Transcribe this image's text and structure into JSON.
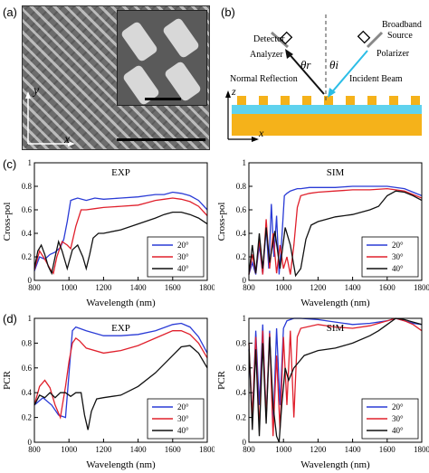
{
  "panels": {
    "a": {
      "label": "(a)",
      "axis_y": "y",
      "axis_x": "x"
    },
    "b": {
      "label": "(b)",
      "detector_line1": "Detector",
      "detector_line2": "Analyzer",
      "source_line1": "Broadband",
      "source_line2": "Source",
      "polarizer": "Polarizer",
      "normal_reflection": "Normal Reflection",
      "incident_beam": "Incident Beam",
      "theta_r": "θr",
      "theta_i": "θi",
      "axis_z": "z",
      "axis_x": "x"
    },
    "c": {
      "label": "(c)"
    },
    "d": {
      "label": "(d)"
    }
  },
  "colors": {
    "s20": "#2a3bd6",
    "s30": "#e0202c",
    "s40": "#111111",
    "substrate": "#f5b21a",
    "spacer": "#5fd2ee",
    "pillar": "#f5b21a",
    "incident": "#2bbde6"
  },
  "chart_data": [
    {
      "id": "c-exp",
      "type": "line",
      "title": "EXP",
      "xlabel": "Wavelength (nm)",
      "ylabel": "Cross-pol",
      "xlim": [
        800,
        1800
      ],
      "ylim": [
        0,
        1
      ],
      "xticks": [
        800,
        1000,
        1200,
        1400,
        1600,
        1800
      ],
      "yticks": [
        0,
        0.2,
        0.4,
        0.6,
        0.8,
        1
      ],
      "legend_position": "bottom-right",
      "series": [
        {
          "name": "20°",
          "color": "#2a3bd6",
          "x": [
            800,
            830,
            860,
            890,
            920,
            950,
            970,
            990,
            1010,
            1030,
            1050,
            1100,
            1150,
            1200,
            1300,
            1400,
            1450,
            1500,
            1550,
            1600,
            1650,
            1700,
            1750,
            1800
          ],
          "y": [
            0.08,
            0.2,
            0.18,
            0.22,
            0.24,
            0.28,
            0.35,
            0.5,
            0.68,
            0.69,
            0.7,
            0.68,
            0.7,
            0.69,
            0.7,
            0.71,
            0.72,
            0.73,
            0.73,
            0.75,
            0.74,
            0.72,
            0.68,
            0.6
          ]
        },
        {
          "name": "30°",
          "color": "#e0202c",
          "x": [
            800,
            830,
            860,
            890,
            910,
            930,
            960,
            990,
            1010,
            1040,
            1070,
            1100,
            1150,
            1200,
            1300,
            1400,
            1450,
            1500,
            1550,
            1600,
            1650,
            1700,
            1750,
            1800
          ],
          "y": [
            0.09,
            0.25,
            0.18,
            0.1,
            0.06,
            0.2,
            0.33,
            0.3,
            0.27,
            0.46,
            0.6,
            0.6,
            0.61,
            0.62,
            0.63,
            0.64,
            0.66,
            0.68,
            0.69,
            0.7,
            0.69,
            0.67,
            0.63,
            0.55
          ]
        },
        {
          "name": "40°",
          "color": "#111111",
          "x": [
            800,
            820,
            840,
            860,
            880,
            900,
            920,
            940,
            960,
            990,
            1020,
            1050,
            1080,
            1100,
            1120,
            1140,
            1170,
            1200,
            1300,
            1400,
            1500,
            1550,
            1600,
            1650,
            1700,
            1750,
            1800
          ],
          "y": [
            0.1,
            0.25,
            0.3,
            0.22,
            0.12,
            0.06,
            0.2,
            0.33,
            0.25,
            0.1,
            0.26,
            0.3,
            0.2,
            0.1,
            0.22,
            0.36,
            0.4,
            0.4,
            0.43,
            0.48,
            0.53,
            0.56,
            0.58,
            0.58,
            0.56,
            0.53,
            0.48
          ]
        }
      ]
    },
    {
      "id": "c-sim",
      "type": "line",
      "title": "SIM",
      "xlabel": "Wavelength (nm)",
      "ylabel": "Cross-pol",
      "xlim": [
        800,
        1800
      ],
      "ylim": [
        0,
        1
      ],
      "xticks": [
        800,
        1000,
        1200,
        1400,
        1600,
        1800
      ],
      "yticks": [
        0,
        0.2,
        0.4,
        0.6,
        0.8,
        1
      ],
      "legend_position": "bottom-right",
      "series": [
        {
          "name": "20°",
          "color": "#2a3bd6",
          "x": [
            800,
            820,
            840,
            860,
            880,
            900,
            915,
            930,
            945,
            960,
            975,
            990,
            1005,
            1020,
            1040,
            1060,
            1080,
            1100,
            1150,
            1200,
            1300,
            1400,
            1500,
            1600,
            1700,
            1800
          ],
          "y": [
            0.05,
            0.15,
            0.05,
            0.3,
            0.05,
            0.45,
            0.1,
            0.65,
            0.2,
            0.55,
            0.05,
            0.35,
            0.72,
            0.74,
            0.76,
            0.77,
            0.78,
            0.78,
            0.79,
            0.79,
            0.79,
            0.8,
            0.8,
            0.8,
            0.78,
            0.72
          ]
        },
        {
          "name": "30°",
          "color": "#e0202c",
          "x": [
            800,
            820,
            840,
            860,
            880,
            900,
            920,
            940,
            960,
            980,
            1000,
            1020,
            1040,
            1060,
            1080,
            1100,
            1150,
            1200,
            1300,
            1400,
            1500,
            1600,
            1700,
            1800
          ],
          "y": [
            0.05,
            0.22,
            0.06,
            0.35,
            0.05,
            0.52,
            0.1,
            0.4,
            0.06,
            0.3,
            0.1,
            0.2,
            0.05,
            0.3,
            0.62,
            0.72,
            0.74,
            0.75,
            0.76,
            0.77,
            0.77,
            0.78,
            0.76,
            0.7
          ]
        },
        {
          "name": "40°",
          "color": "#111111",
          "x": [
            800,
            820,
            840,
            860,
            880,
            900,
            920,
            950,
            980,
            1010,
            1040,
            1070,
            1100,
            1130,
            1160,
            1200,
            1250,
            1300,
            1400,
            1500,
            1550,
            1600,
            1650,
            1700,
            1750,
            1800
          ],
          "y": [
            0.05,
            0.3,
            0.06,
            0.4,
            0.1,
            0.45,
            0.15,
            0.42,
            0.1,
            0.45,
            0.3,
            0.04,
            0.1,
            0.35,
            0.47,
            0.5,
            0.52,
            0.54,
            0.56,
            0.6,
            0.63,
            0.72,
            0.76,
            0.75,
            0.72,
            0.68
          ]
        }
      ]
    },
    {
      "id": "d-exp",
      "type": "line",
      "title": "EXP",
      "xlabel": "Wavelength (nm)",
      "ylabel": "PCR",
      "xlim": [
        800,
        1800
      ],
      "ylim": [
        0,
        1
      ],
      "xticks": [
        800,
        1000,
        1200,
        1400,
        1600,
        1800
      ],
      "yticks": [
        0,
        0.2,
        0.4,
        0.6,
        0.8,
        1
      ],
      "legend_position": "bottom-right",
      "series": [
        {
          "name": "20°",
          "color": "#2a3bd6",
          "x": [
            800,
            850,
            900,
            940,
            980,
            1000,
            1020,
            1040,
            1060,
            1100,
            1200,
            1300,
            1400,
            1500,
            1600,
            1650,
            1700,
            1750,
            1800
          ],
          "y": [
            0.3,
            0.36,
            0.3,
            0.22,
            0.2,
            0.55,
            0.9,
            0.93,
            0.92,
            0.9,
            0.86,
            0.86,
            0.87,
            0.9,
            0.95,
            0.96,
            0.93,
            0.85,
            0.72
          ]
        },
        {
          "name": "30°",
          "color": "#e0202c",
          "x": [
            800,
            830,
            860,
            890,
            920,
            950,
            980,
            1000,
            1020,
            1040,
            1060,
            1100,
            1200,
            1300,
            1400,
            1500,
            1600,
            1650,
            1700,
            1750,
            1800
          ],
          "y": [
            0.3,
            0.45,
            0.5,
            0.44,
            0.3,
            0.2,
            0.45,
            0.65,
            0.8,
            0.84,
            0.82,
            0.76,
            0.72,
            0.74,
            0.78,
            0.84,
            0.9,
            0.9,
            0.87,
            0.8,
            0.68
          ]
        },
        {
          "name": "40°",
          "color": "#111111",
          "x": [
            800,
            830,
            860,
            890,
            920,
            950,
            980,
            1010,
            1040,
            1070,
            1090,
            1110,
            1130,
            1160,
            1200,
            1300,
            1400,
            1500,
            1600,
            1650,
            1700,
            1750,
            1800
          ],
          "y": [
            0.3,
            0.38,
            0.36,
            0.4,
            0.36,
            0.4,
            0.4,
            0.37,
            0.4,
            0.4,
            0.22,
            0.1,
            0.25,
            0.35,
            0.36,
            0.38,
            0.45,
            0.56,
            0.7,
            0.77,
            0.78,
            0.72,
            0.6
          ]
        }
      ]
    },
    {
      "id": "d-sim",
      "type": "line",
      "title": "SIM",
      "xlabel": "Wavelength (nm)",
      "ylabel": "PCR",
      "xlim": [
        800,
        1800
      ],
      "ylim": [
        0,
        1
      ],
      "xticks": [
        800,
        1000,
        1200,
        1400,
        1600,
        1800
      ],
      "yticks": [
        0,
        0.2,
        0.4,
        0.6,
        0.8,
        1
      ],
      "legend_position": "bottom-right",
      "series": [
        {
          "name": "20°",
          "color": "#2a3bd6",
          "x": [
            800,
            820,
            840,
            860,
            880,
            900,
            920,
            940,
            960,
            980,
            1000,
            1020,
            1040,
            1060,
            1100,
            1200,
            1300,
            1400,
            1500,
            1600,
            1650,
            1700,
            1750,
            1800
          ],
          "y": [
            0.75,
            0.2,
            0.9,
            0.3,
            0.95,
            0.2,
            0.9,
            0.1,
            0.92,
            0.3,
            0.92,
            0.98,
            0.99,
            1.0,
            1.0,
            0.99,
            0.97,
            0.95,
            0.96,
            0.98,
            1.0,
            0.98,
            0.96,
            0.95
          ]
        },
        {
          "name": "30°",
          "color": "#e0202c",
          "x": [
            800,
            820,
            840,
            860,
            880,
            900,
            920,
            940,
            960,
            980,
            1000,
            1020,
            1040,
            1060,
            1080,
            1100,
            1200,
            1300,
            1400,
            1500,
            1600,
            1650,
            1700,
            1750,
            1800
          ],
          "y": [
            0.8,
            0.2,
            0.85,
            0.1,
            0.9,
            0.2,
            0.88,
            0.05,
            0.7,
            0.1,
            0.85,
            0.3,
            0.9,
            0.2,
            0.85,
            0.92,
            0.95,
            0.93,
            0.92,
            0.94,
            0.98,
            1.0,
            0.98,
            0.95,
            0.9
          ]
        },
        {
          "name": "40°",
          "color": "#111111",
          "x": [
            800,
            820,
            840,
            860,
            880,
            900,
            920,
            940,
            960,
            975,
            990,
            1010,
            1030,
            1060,
            1090,
            1120,
            1160,
            1200,
            1300,
            1400,
            1500,
            1550,
            1600,
            1650,
            1700,
            1750,
            1800
          ],
          "y": [
            0.8,
            0.1,
            0.75,
            0.05,
            0.8,
            0.15,
            0.85,
            0.3,
            0.05,
            0.0,
            0.3,
            0.6,
            0.5,
            0.6,
            0.65,
            0.7,
            0.72,
            0.74,
            0.76,
            0.8,
            0.86,
            0.9,
            0.95,
            1.0,
            0.99,
            0.97,
            0.95
          ]
        }
      ]
    }
  ]
}
